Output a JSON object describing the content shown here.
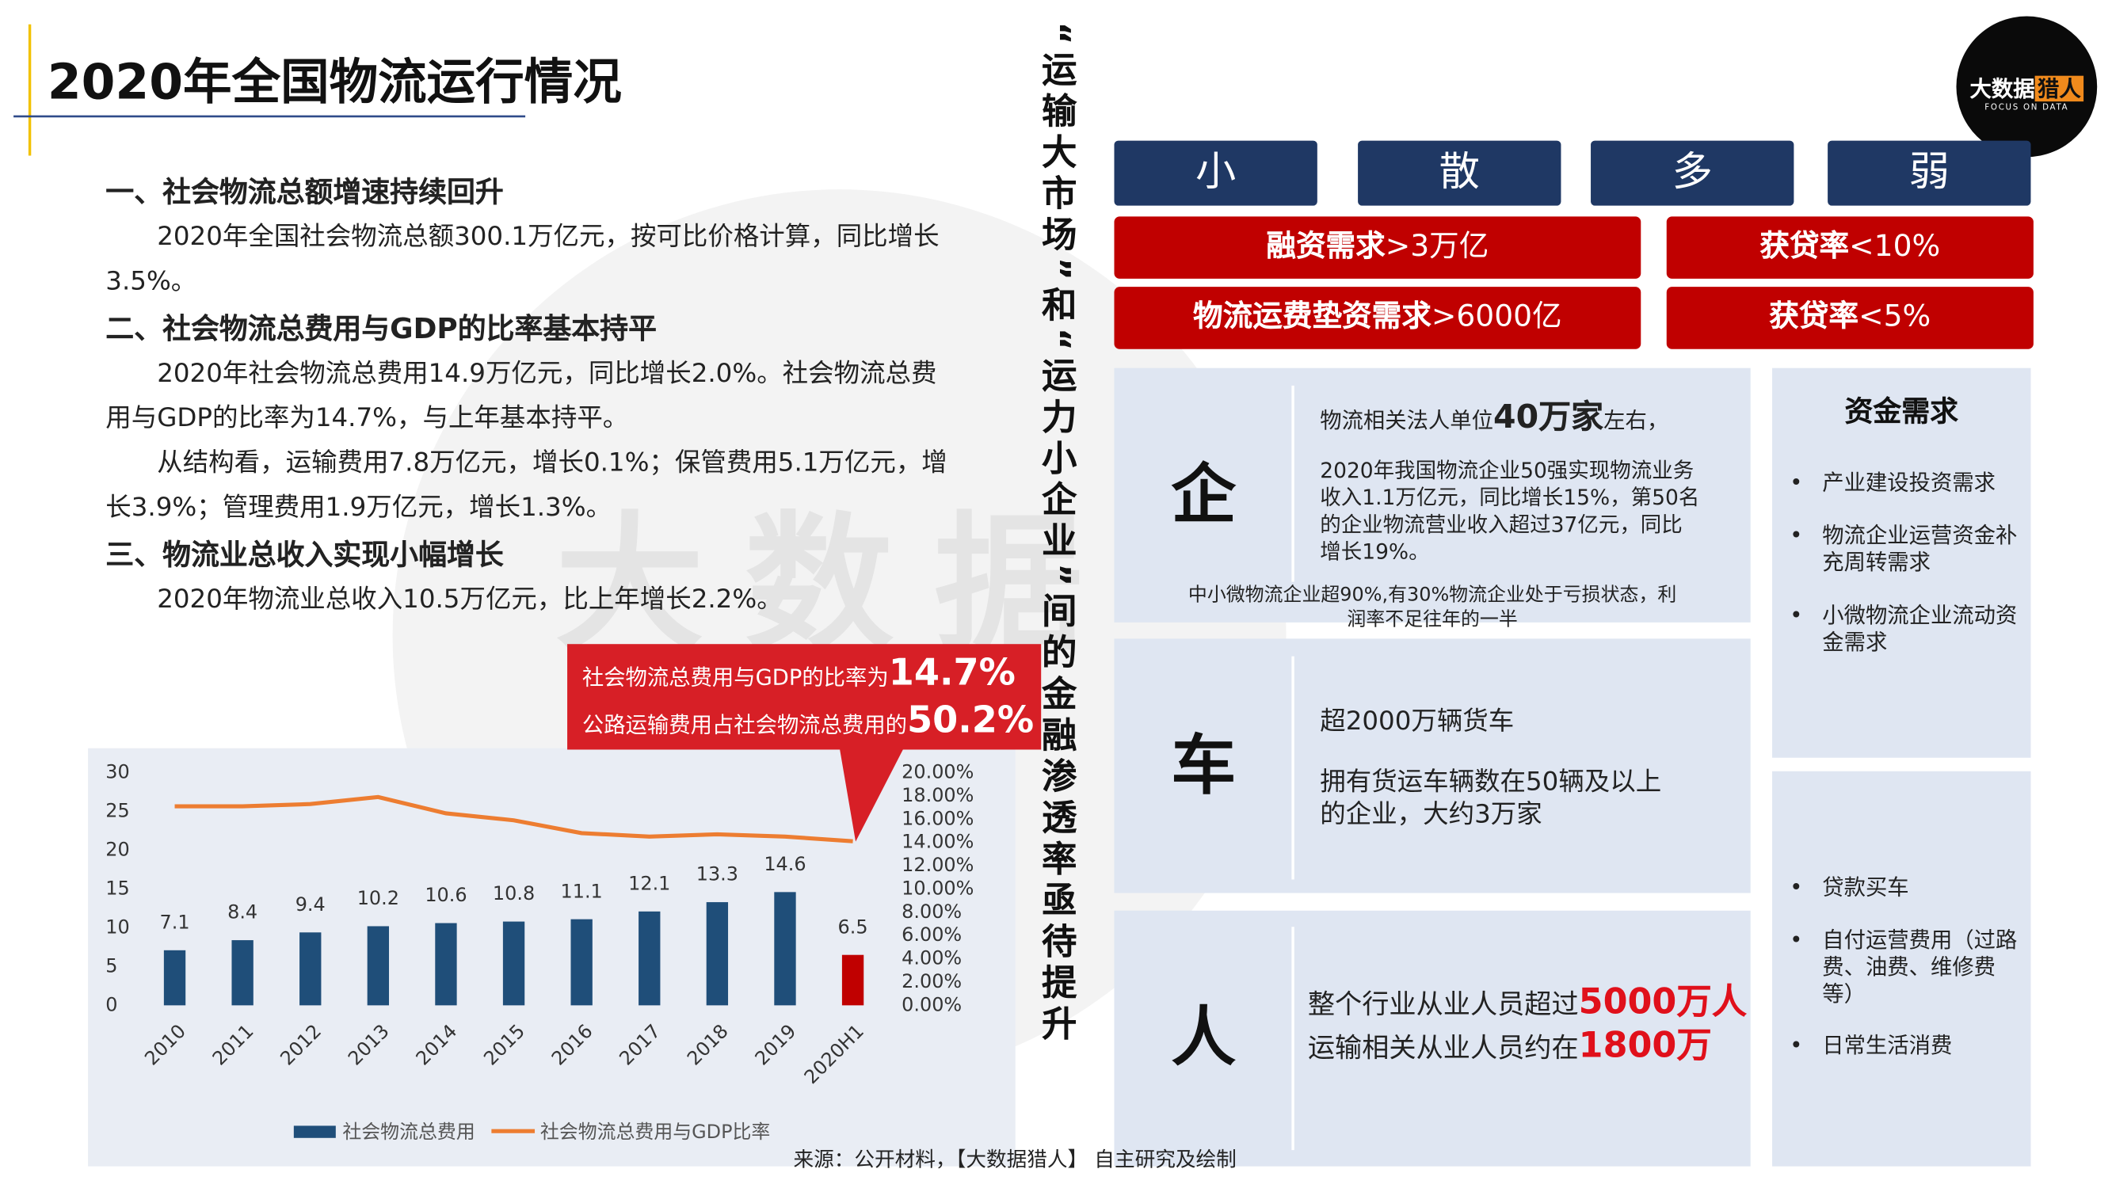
{
  "header": {
    "title": "2020年全国物流运行情况"
  },
  "logo": {
    "main": "大数据",
    "accent": "猎人",
    "tagline": "FOCUS ON DATA"
  },
  "watermark": "大数据",
  "sections": [
    {
      "heading": "一、社会物流总额增速持续回升",
      "paragraphs": [
        "2020年全国社会物流总额300.1万亿元，按可比价格计算，同比增长3.5%。"
      ]
    },
    {
      "heading": "二、社会物流总费用与GDP的比率基本持平",
      "paragraphs": [
        "2020年社会物流总费用14.9万亿元，同比增长2.0%。社会物流总费用与GDP的比率为14.7%，与上年基本持平。",
        "从结构看，运输费用7.8万亿元，增长0.1%；保管费用5.1万亿元，增长3.9%；管理费用1.9万亿元，增长1.3%。"
      ]
    },
    {
      "heading": "三、物流业总收入实现小幅增长",
      "paragraphs": [
        "2020年物流业总收入10.5万亿元，比上年增长2.2%。"
      ]
    }
  ],
  "callout": [
    {
      "text": "社会物流总费用与GDP的比率为",
      "value": "14.7%"
    },
    {
      "text": "公路运输费用占社会物流总费用的",
      "value": "50.2%"
    }
  ],
  "chart_data": {
    "type": "bar_line",
    "categories": [
      "2010",
      "2011",
      "2012",
      "2013",
      "2014",
      "2015",
      "2016",
      "2017",
      "2018",
      "2019",
      "2020H1"
    ],
    "series": [
      {
        "name": "社会物流总费用",
        "type": "bar",
        "color": "#1f4e79",
        "colors": [
          "#1f4e79",
          "#1f4e79",
          "#1f4e79",
          "#1f4e79",
          "#1f4e79",
          "#1f4e79",
          "#1f4e79",
          "#1f4e79",
          "#1f4e79",
          "#1f4e79",
          "#c00000"
        ],
        "values": [
          7.1,
          8.4,
          9.4,
          10.2,
          10.6,
          10.8,
          11.1,
          12.1,
          13.3,
          14.6,
          6.5
        ]
      },
      {
        "name": "社会物流总费用与GDP比率",
        "type": "line",
        "axis": "y2",
        "color": "#ed7d31",
        "values": [
          17.1,
          17.1,
          17.3,
          17.9,
          16.5,
          15.9,
          14.8,
          14.5,
          14.7,
          14.5,
          14.1
        ]
      }
    ],
    "ylim": [
      0,
      30
    ],
    "yticks": [
      0,
      5,
      10,
      15,
      20,
      25,
      30
    ],
    "y2lim": [
      0,
      20
    ],
    "y2ticks": [
      {
        "value": 0,
        "label": "0.00%"
      },
      {
        "value": 2,
        "label": "2.00%"
      },
      {
        "value": 4,
        "label": "4.00%"
      },
      {
        "value": 6,
        "label": "6.00%"
      },
      {
        "value": 8,
        "label": "8.00%"
      },
      {
        "value": 10,
        "label": "10.00%"
      },
      {
        "value": 12,
        "label": "12.00%"
      },
      {
        "value": 14,
        "label": "14.00%"
      },
      {
        "value": 16,
        "label": "16.00%"
      },
      {
        "value": 18,
        "label": "18.00%"
      },
      {
        "value": 20,
        "label": "20.00%"
      }
    ],
    "grid": false,
    "legend": "bottom"
  },
  "side_title": "“运输大市场”和“运力小企业”间的金融渗透率亟待提升",
  "traits": [
    "小",
    "散",
    "多",
    "弱"
  ],
  "metrics": [
    {
      "label": "融资需求",
      "value": ">3万亿"
    },
    {
      "label": "获贷率",
      "value": "<10%"
    },
    {
      "label": "物流运费垫资需求",
      "value": ">6000亿"
    },
    {
      "label": "获贷率",
      "value": "<5%"
    }
  ],
  "panels": [
    {
      "label": "企",
      "lead": [
        {
          "text": "物流相关法人单位"
        },
        {
          "text": "40万家",
          "strong": true
        },
        {
          "text": "左右，"
        }
      ],
      "body": "2020年我国物流企业50强实现物流业务收入1.1万亿元，同比增长15%，第50名的企业物流营业收入超过37亿元，同比增长19%。",
      "note": "中小微物流企业超90%,有30%物流企业处于亏损状态，利润率不足往年的一半"
    },
    {
      "label": "车",
      "lead": [
        {
          "text": "超2000万辆货车"
        }
      ],
      "body": "拥有货运车辆数在50辆及以上的企业，大约3万家"
    },
    {
      "label": "人",
      "lines": [
        [
          {
            "text": "整个行业从业人员超过"
          },
          {
            "text": "5000万人",
            "strong": true
          }
        ],
        [
          {
            "text": "运输相关从业人员约在"
          },
          {
            "text": "1800万",
            "strong": true
          }
        ]
      ]
    }
  ],
  "needs": {
    "title": "资金需求",
    "items": [
      "产业建设投资需求",
      "物流企业运营资金补充周转需求",
      "小微物流企业流动资金需求"
    ]
  },
  "needs_people": {
    "items": [
      "贷款买车",
      "自付运营费用（过路费、油费、维修费等）",
      "日常生活消费"
    ]
  },
  "source": "来源：公开材料，【大数据猎人】 自主研究及绘制"
}
